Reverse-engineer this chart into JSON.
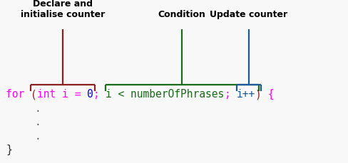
{
  "bg_color": "#f8f8f8",
  "label1_text": "Declare and\ninitialise counter",
  "label2_text": "Condition",
  "label3_text": "Update counter",
  "label_fontsize": 9,
  "code_fontsize": 10.5,
  "bracket1_color": "#8b2020",
  "bracket2_color": "#1a6b1a",
  "bracket3_color": "#1a5a9b",
  "segments": [
    [
      "for ",
      "#ff00ff"
    ],
    [
      "(",
      "#8b2020"
    ],
    [
      "int ",
      "#ff00ff"
    ],
    [
      "i",
      "#ff00ff"
    ],
    [
      " = ",
      "#ff00ff"
    ],
    [
      "0",
      "#0000cc"
    ],
    [
      ";",
      "#ff00ff"
    ],
    [
      " ",
      "#ff00ff"
    ],
    [
      "i < numberOfPhrases",
      "#1a6b1a"
    ],
    [
      ";",
      "#ff00ff"
    ],
    [
      " ",
      "#ff00ff"
    ],
    [
      "i++",
      "#1a5a9b"
    ],
    [
      ")",
      "#8b2020"
    ],
    [
      " {",
      "#ff00ff"
    ]
  ],
  "dot_color": "#555555",
  "brace_color": "#333333",
  "fig_width": 4.89,
  "fig_height": 2.29,
  "dpi": 100
}
